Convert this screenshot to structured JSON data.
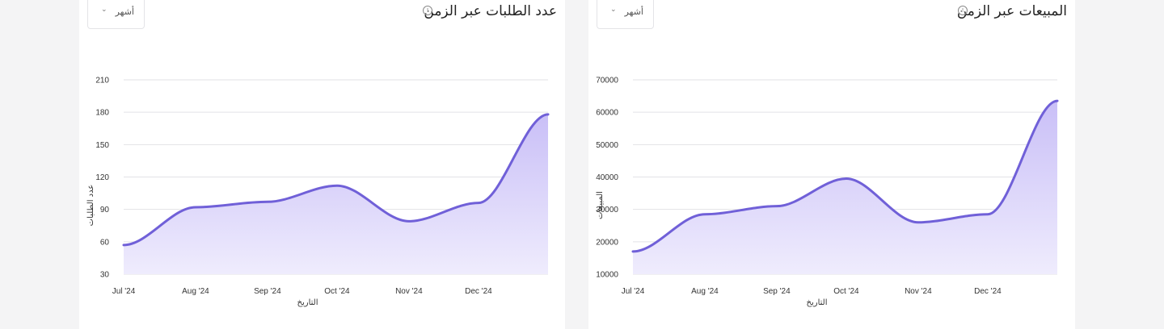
{
  "colors": {
    "line": "#7060d8",
    "area_top": "#c9bff7",
    "area_bottom": "#efecfd",
    "grid": "#e2e2e6"
  },
  "orders_card": {
    "title": "عدد الطلبات عبر الزمن",
    "info_icon": "info-icon",
    "period_select": {
      "value": "أشهر",
      "icon": "chevron-down-icon"
    }
  },
  "sales_card": {
    "title": "المبيعات عبر الزمن",
    "info_icon": "info-icon",
    "period_select": {
      "value": "أشهر",
      "icon": "chevron-down-icon"
    }
  },
  "chart_data": [
    {
      "type": "area",
      "x": [
        "2024-07-01",
        "2024-08-01",
        "2024-09-01",
        "2024-10-01",
        "2024-11-01",
        "2024-12-01",
        "2024-12-31"
      ],
      "values": [
        57,
        92,
        97,
        112,
        79,
        96,
        178
      ],
      "xticks": [
        "Jul '24",
        "Aug '24",
        "Sep '24",
        "Oct '24",
        "Nov '24",
        "Dec '24"
      ],
      "yticks": [
        30,
        60,
        90,
        120,
        150,
        180,
        210
      ],
      "ylim": [
        30,
        210
      ],
      "xlabel": "التاريخ",
      "ylabel": "عدد الطلبات",
      "grid": true
    },
    {
      "type": "area",
      "x": [
        "2024-07-01",
        "2024-08-01",
        "2024-09-01",
        "2024-10-01",
        "2024-11-01",
        "2024-12-01",
        "2024-12-31"
      ],
      "values": [
        17000,
        28500,
        31000,
        39500,
        26000,
        28500,
        63500
      ],
      "xticks": [
        "Jul '24",
        "Aug '24",
        "Sep '24",
        "Oct '24",
        "Nov '24",
        "Dec '24"
      ],
      "yticks": [
        10000,
        20000,
        30000,
        40000,
        50000,
        60000,
        70000
      ],
      "ylim": [
        10000,
        70000
      ],
      "xlabel": "التاريخ",
      "ylabel": "المبيعات",
      "grid": true
    }
  ]
}
